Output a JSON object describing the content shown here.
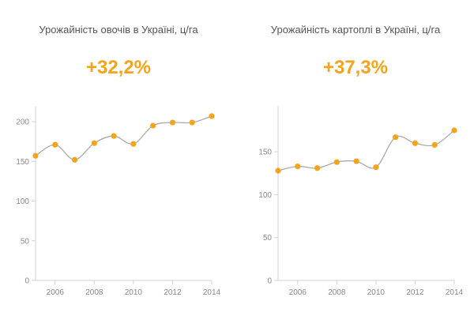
{
  "accent_color": "#f5a31a",
  "chart_data": [
    {
      "type": "line",
      "title": "Урожайність овочів в Україні, ц/га",
      "change": "+32,2%",
      "x": [
        2005,
        2006,
        2007,
        2008,
        2009,
        2010,
        2011,
        2012,
        2013,
        2014
      ],
      "values": [
        157,
        171,
        152,
        173,
        182,
        172,
        195,
        199,
        199,
        207
      ],
      "xlim": [
        2005,
        2014
      ],
      "ylim": [
        0,
        210
      ],
      "xticks": [
        2006,
        2008,
        2010,
        2012,
        2014
      ],
      "yticks": [
        0,
        50,
        100,
        150,
        200
      ],
      "xlabel": "",
      "ylabel": ""
    },
    {
      "type": "line",
      "title": "Урожайність картоплі в Україні, ц/га",
      "change": "+37,3%",
      "x": [
        2005,
        2006,
        2007,
        2008,
        2009,
        2010,
        2011,
        2012,
        2013,
        2014
      ],
      "values": [
        128,
        133,
        131,
        138,
        139,
        132,
        167,
        160,
        158,
        175
      ],
      "xlim": [
        2005,
        2014
      ],
      "ylim": [
        0,
        175
      ],
      "xticks": [
        2006,
        2008,
        2010,
        2012,
        2014
      ],
      "yticks": [
        0,
        50,
        100,
        150
      ],
      "xlabel": "",
      "ylabel": ""
    }
  ]
}
